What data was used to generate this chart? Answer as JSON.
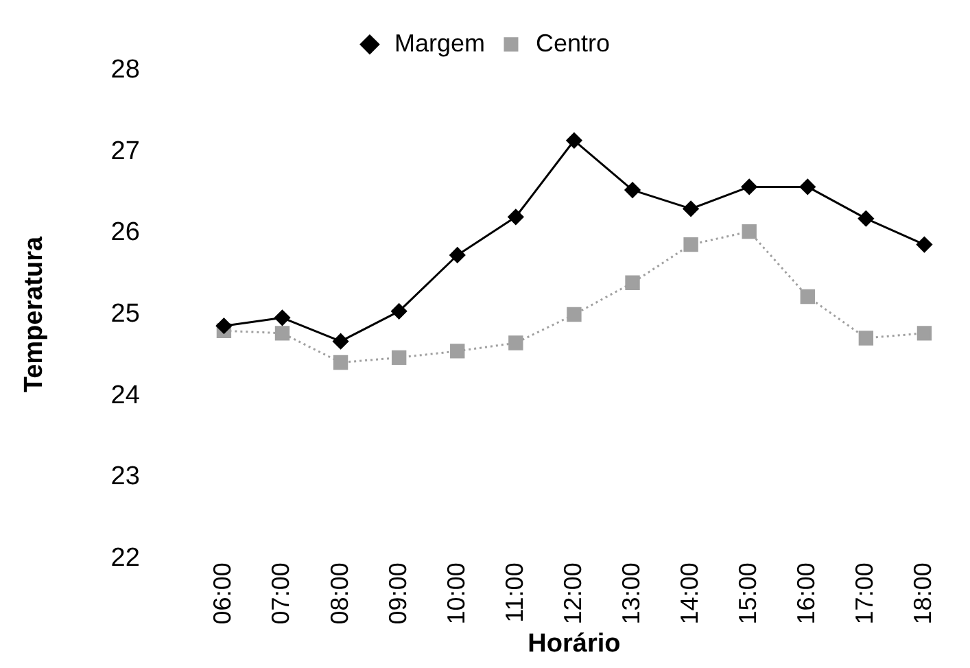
{
  "chart_data": {
    "type": "line",
    "xlabel": "Horário",
    "ylabel": "Temperatura",
    "categories": [
      "06:00",
      "07:00",
      "08:00",
      "09:00",
      "10:00",
      "11:00",
      "12:00",
      "13:00",
      "14:00",
      "15:00",
      "16:00",
      "17:00",
      "18:00"
    ],
    "series": [
      {
        "name": "Margem",
        "color": "#000000",
        "marker": "diamond",
        "line_style": "solid",
        "values": [
          24.86,
          24.96,
          24.67,
          25.04,
          25.73,
          26.2,
          27.14,
          26.53,
          26.3,
          26.57,
          26.57,
          26.18,
          25.86
        ]
      },
      {
        "name": "Centro",
        "color": "#a0a0a0",
        "marker": "square",
        "line_style": "dotted",
        "values": [
          24.8,
          24.77,
          24.41,
          24.47,
          24.55,
          24.65,
          25.0,
          25.39,
          25.86,
          26.02,
          25.22,
          24.71,
          24.77
        ]
      }
    ],
    "ylim": [
      22,
      28
    ],
    "yticks": [
      22,
      23,
      24,
      25,
      26,
      27,
      28
    ],
    "grid": false,
    "legend": "top"
  }
}
